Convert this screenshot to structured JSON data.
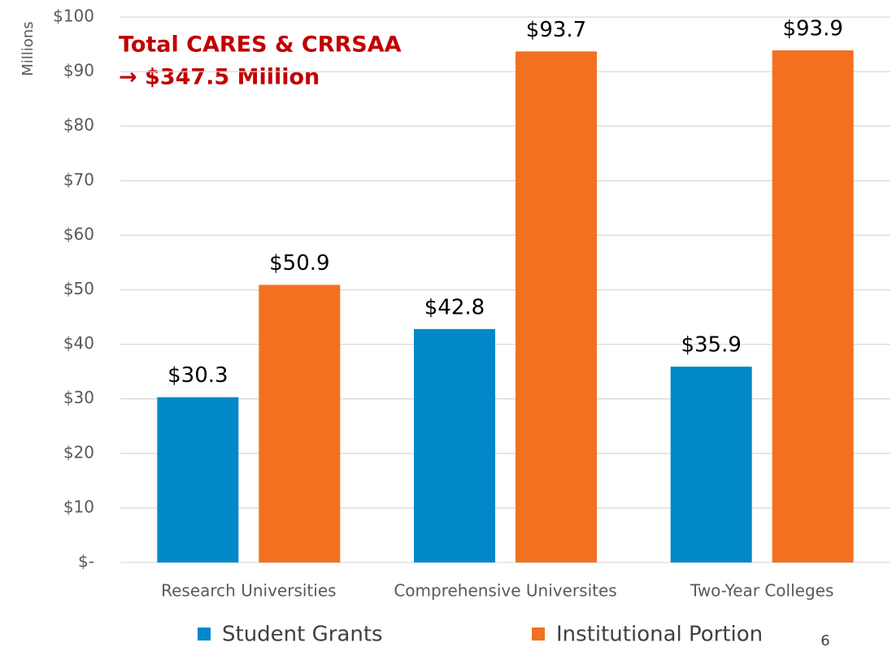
{
  "chart_data": {
    "type": "bar",
    "y_axis_label": "Millions",
    "annotations": [
      "Total CARES & CRRSAA",
      "→ $347.5 Million"
    ],
    "page_number": "6",
    "categories": [
      "Research Universities",
      "Comprehensive Universites",
      "Two-Year Colleges"
    ],
    "series": [
      {
        "name": "Student Grants",
        "color": "#0088c8",
        "values": [
          30.3,
          42.8,
          35.9
        ],
        "value_labels": [
          "$30.3",
          "$42.8",
          "$35.9"
        ]
      },
      {
        "name": "Institutional Portion",
        "color": "#f37021",
        "values": [
          50.9,
          93.7,
          93.9
        ],
        "value_labels": [
          "$50.9",
          "$93.7",
          "$93.9"
        ]
      }
    ],
    "ylim": [
      0,
      100
    ],
    "yticks": [
      {
        "value": 0,
        "label": "$-"
      },
      {
        "value": 10,
        "label": "$10"
      },
      {
        "value": 20,
        "label": "$20"
      },
      {
        "value": 30,
        "label": "$30"
      },
      {
        "value": 40,
        "label": "$40"
      },
      {
        "value": 50,
        "label": "$50"
      },
      {
        "value": 60,
        "label": "$60"
      },
      {
        "value": 70,
        "label": "$70"
      },
      {
        "value": 80,
        "label": "$80"
      },
      {
        "value": 90,
        "label": "$90"
      },
      {
        "value": 100,
        "label": "$100"
      }
    ],
    "grid": true,
    "legend": "bottom"
  }
}
